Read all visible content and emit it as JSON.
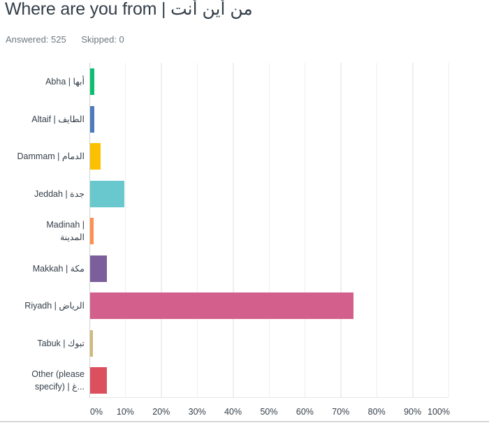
{
  "header": {
    "title": "Where are you from |  من أين أنت",
    "answered": "Answered: 525",
    "skipped": "Skipped: 0"
  },
  "chart_data": {
    "type": "bar",
    "orientation": "horizontal",
    "title": "Where are you from |  من أين أنت",
    "categories": [
      "Abha | أبها",
      "Altaif | الطايف",
      "Dammam | الدمام",
      "Jeddah | جدة",
      "Madinah | المدينة",
      "Makkah | مكة",
      "Riyadh | الرياض",
      "Tabuk | تبوك",
      "Other (please specify) | غ..."
    ],
    "values": [
      1.1,
      1.1,
      3.0,
      9.5,
      1.0,
      4.6,
      73.3,
      0.7,
      4.6
    ],
    "colors": [
      "#0abf6f",
      "#4f7bbd",
      "#fbc100",
      "#68c8cd",
      "#ff8f50",
      "#7b5e9a",
      "#d35f8c",
      "#cfba7a",
      "#dc4f5f"
    ],
    "xlabel": "",
    "ylabel": "",
    "xlim": [
      0,
      100
    ],
    "xticks": [
      "0%",
      "10%",
      "20%",
      "30%",
      "40%",
      "50%",
      "60%",
      "70%",
      "80%",
      "90%",
      "100%"
    ],
    "grid": true,
    "legend": "none",
    "answered": 525,
    "skipped": 0
  },
  "labels": [
    [
      "Abha | أبها"
    ],
    [
      "Altaif | الطايف"
    ],
    [
      "Dammam | الدمام"
    ],
    [
      "Jeddah | جدة"
    ],
    [
      "Madinah |",
      "المدينة"
    ],
    [
      "Makkah | مكة"
    ],
    [
      "Riyadh | الرياض"
    ],
    [
      "Tabuk | تبوك"
    ],
    [
      "Other (please",
      "specify) | غ..."
    ]
  ]
}
